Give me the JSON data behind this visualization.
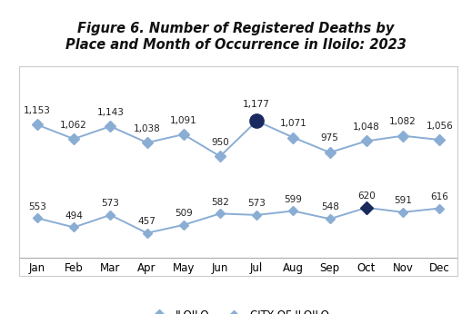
{
  "title": "Figure 6. Number of Registered Deaths by\nPlace and Month of Occurrence in Iloilo: 2023",
  "months": [
    "Jan",
    "Feb",
    "Mar",
    "Apr",
    "May",
    "Jun",
    "Jul",
    "Aug",
    "Sep",
    "Oct",
    "Nov",
    "Dec"
  ],
  "iloilo": [
    1153,
    1062,
    1143,
    1038,
    1091,
    950,
    1177,
    1071,
    975,
    1048,
    1082,
    1056
  ],
  "city_of_iloilo": [
    553,
    494,
    573,
    457,
    509,
    582,
    573,
    599,
    548,
    620,
    591,
    616
  ],
  "line_color": "#8aadd4",
  "highlight_iloilo_idx": 6,
  "highlight_city_idx": 9,
  "highlight_color": "#1a2a5e",
  "label_fontsize": 7.5,
  "title_fontsize": 10.5,
  "legend_labels": [
    "ILOILO",
    "CITY OF ILOILO"
  ],
  "bg_color": "#ffffff"
}
